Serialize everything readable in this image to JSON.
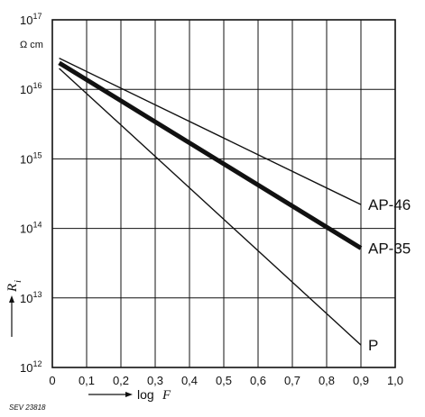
{
  "chart_data": {
    "type": "line",
    "title": "",
    "xlabel_prefix": "log",
    "xlabel_var": "F",
    "ylabel_var": "R",
    "ylabel_sub": "i",
    "y_unit": "Ω cm",
    "x_scale": "linear",
    "y_scale": "log",
    "xlim": [
      0,
      1.0
    ],
    "ylim": [
      1000000000000.0,
      1e+17
    ],
    "grid": true,
    "legend": "inline-right",
    "x_ticks": [
      "0",
      "0,1",
      "0,2",
      "0,3",
      "0,4",
      "0,5",
      "0,6",
      "0,7",
      "0,8",
      "0,9",
      "1,0"
    ],
    "y_ticks": [
      {
        "base": "10",
        "exp": "12"
      },
      {
        "base": "10",
        "exp": "13"
      },
      {
        "base": "10",
        "exp": "14"
      },
      {
        "base": "10",
        "exp": "15"
      },
      {
        "base": "10",
        "exp": "16"
      },
      {
        "base": "10",
        "exp": "17"
      }
    ],
    "series": [
      {
        "name": "AP-46",
        "x": [
          0.02,
          0.9
        ],
        "y": [
          2.8e+16,
          220000000000000.0
        ],
        "thick": false
      },
      {
        "name": "AP-35",
        "x": [
          0.02,
          0.9
        ],
        "y": [
          2.4e+16,
          52000000000000.0
        ],
        "thick": true
      },
      {
        "name": "P",
        "x": [
          0.02,
          0.9
        ],
        "y": [
          2e+16,
          2100000000000.0
        ],
        "thick": false
      }
    ],
    "source_code": "SEV 23818"
  }
}
